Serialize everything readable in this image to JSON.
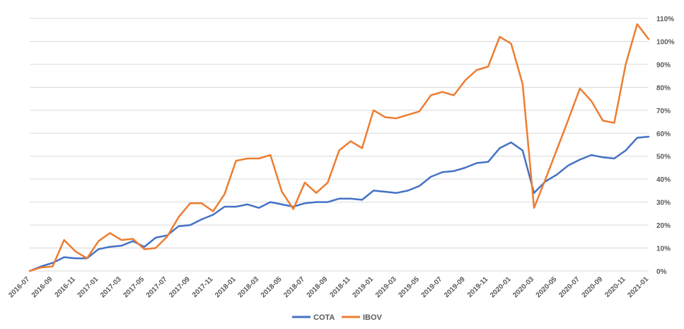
{
  "chart_data": {
    "type": "line",
    "title": "",
    "xlabel": "",
    "ylabel": "",
    "ylim": [
      0,
      110
    ],
    "y_ticks": [
      "0%",
      "10%",
      "20%",
      "30%",
      "40%",
      "50%",
      "60%",
      "70%",
      "80%",
      "90%",
      "100%",
      "110%"
    ],
    "y_tick_values": [
      0,
      10,
      20,
      30,
      40,
      50,
      60,
      70,
      80,
      90,
      100,
      110
    ],
    "grid": "horizontal",
    "legend_position": "bottom",
    "x": [
      "2016-07",
      "2016-08",
      "2016-09",
      "2016-10",
      "2016-11",
      "2016-12",
      "2017-01",
      "2017-02",
      "2017-03",
      "2017-04",
      "2017-05",
      "2017-06",
      "2017-07",
      "2017-08",
      "2017-09",
      "2017-10",
      "2017-11",
      "2017-12",
      "2018-01",
      "2018-02",
      "2018-03",
      "2018-04",
      "2018-05",
      "2018-06",
      "2018-07",
      "2018-08",
      "2018-09",
      "2018-10",
      "2018-11",
      "2018-12",
      "2019-01",
      "2019-02",
      "2019-03",
      "2019-04",
      "2019-05",
      "2019-06",
      "2019-07",
      "2019-08",
      "2019-09",
      "2019-10",
      "2019-11",
      "2019-12",
      "2020-01",
      "2020-02",
      "2020-03",
      "2020-04",
      "2020-05",
      "2020-06",
      "2020-07",
      "2020-08",
      "2020-09",
      "2020-10",
      "2020-11",
      "2020-12",
      "2021-01"
    ],
    "x_tick_labels": [
      "2016-07",
      "2016-09",
      "2016-11",
      "2017-01",
      "2017-03",
      "2017-05",
      "2017-07",
      "2017-09",
      "2017-11",
      "2018-01",
      "2018-03",
      "2018-05",
      "2018-07",
      "2018-09",
      "2018-11",
      "2019-01",
      "2019-03",
      "2019-05",
      "2019-07",
      "2019-09",
      "2019-11",
      "2020-01",
      "2020-03",
      "2020-05",
      "2020-07",
      "2020-09",
      "2020-11",
      "2021-01"
    ],
    "series": [
      {
        "name": "COTA",
        "color": "#4472C4",
        "values": [
          0,
          2,
          3.5,
          6,
          5.5,
          5.5,
          9.5,
          10.5,
          11,
          13,
          10.5,
          14.5,
          15.5,
          19.5,
          20,
          22.5,
          24.5,
          28,
          28,
          29,
          27.5,
          30,
          29,
          28,
          29.5,
          30,
          30,
          31.5,
          31.5,
          31,
          35,
          34.5,
          34,
          35,
          37,
          41,
          43,
          43.5,
          45,
          47,
          47.5,
          53.5,
          56,
          52.5,
          34,
          39,
          42,
          46,
          48.5,
          50.5,
          49.5,
          49,
          52.5,
          58,
          58.5
        ]
      },
      {
        "name": "IBOV",
        "color": "#ED7D31",
        "values": [
          0,
          1.5,
          2,
          13.5,
          8.5,
          5.5,
          13,
          16.5,
          13.5,
          14,
          9.5,
          10,
          15,
          23.5,
          29.5,
          29.5,
          26,
          33.5,
          48,
          49,
          49,
          50.5,
          34.5,
          27,
          38.5,
          34,
          38.5,
          52.5,
          56.5,
          53.5,
          70,
          67,
          66.5,
          68,
          69.5,
          76.5,
          78,
          76.5,
          83,
          87.5,
          89,
          102,
          99,
          81.5,
          27.5,
          40,
          53,
          66,
          79.5,
          74,
          65.5,
          64.5,
          90,
          107.5,
          101
        ]
      }
    ]
  }
}
